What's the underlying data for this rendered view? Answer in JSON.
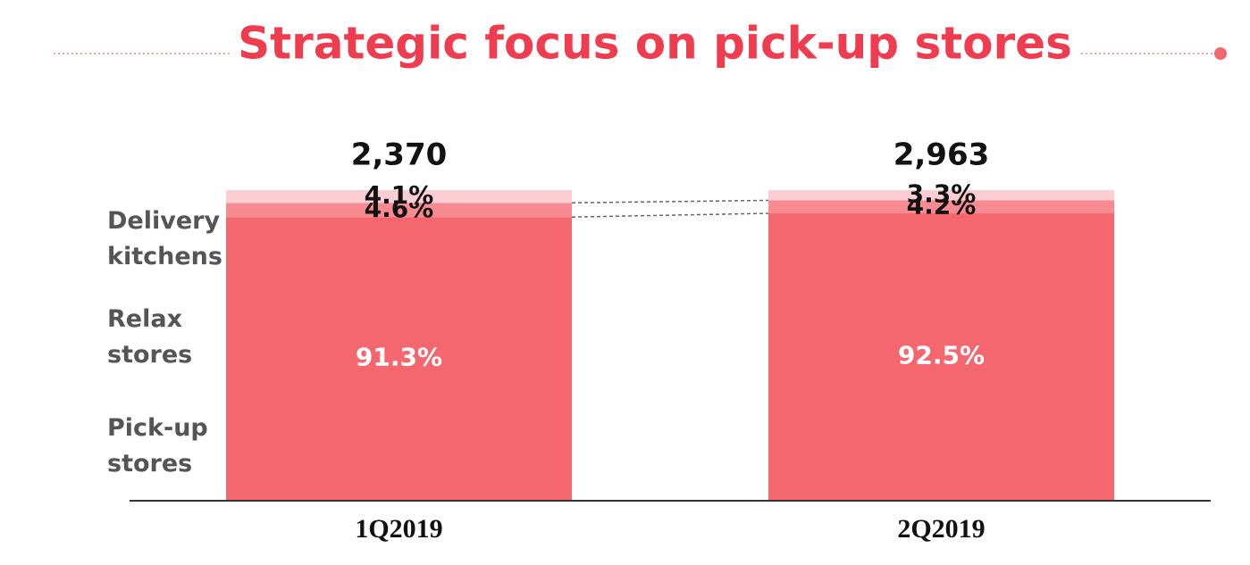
{
  "chart_data": {
    "type": "stacked_bar_100",
    "title": "Strategic focus on pick-up stores",
    "categories": [
      "1Q2019",
      "2Q2019"
    ],
    "totals": [
      {
        "value": 2370,
        "label": "2,370"
      },
      {
        "value": 2963,
        "label": "2,963"
      }
    ],
    "series": [
      {
        "name": "Pick-up stores",
        "color": "#f4676e",
        "values": [
          91.3,
          92.5
        ],
        "value_labels": [
          "91.3%",
          "92.5%"
        ]
      },
      {
        "name": "Relax stores",
        "color": "#f88a91",
        "values": [
          4.6,
          4.2
        ],
        "value_labels": [
          "4.6%",
          "4.2%"
        ]
      },
      {
        "name": "Delivery kitchens",
        "color": "#fccdd2",
        "values": [
          4.1,
          3.3
        ],
        "value_labels": [
          "4.1%",
          "3.3%"
        ]
      }
    ],
    "ylim": [
      0,
      100
    ],
    "title_color": "#f03c4f"
  }
}
